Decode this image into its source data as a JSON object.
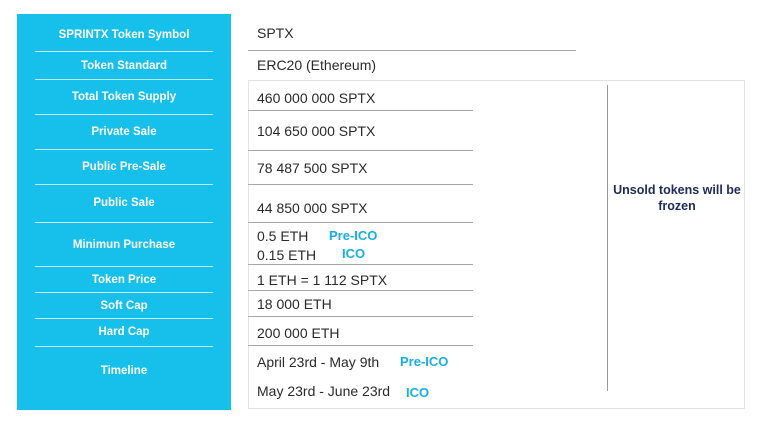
{
  "labels": [
    "SPRINTX Token Symbol",
    "Token Standard",
    "Total Token Supply",
    "Private Sale",
    "Public Pre-Sale",
    "Public Sale",
    "Minimun Purchase",
    "Token Price",
    "Soft Cap",
    "Hard Cap",
    "Timeline"
  ],
  "values": {
    "symbol": "SPTX",
    "standard": "ERC20 (Ethereum)",
    "total_supply": "460 000 000 SPTX",
    "private_sale": "104 650 000 SPTX",
    "public_presale": "78 487 500 SPTX",
    "public_sale": "44 850 000 SPTX",
    "min_purchase_preico": "0.5 ETH",
    "min_purchase_ico": "0.15 ETH",
    "token_price": "1 ETH = 1 112 SPTX",
    "soft_cap": "18 000 ETH",
    "hard_cap": "200 000 ETH",
    "timeline_preico": "April 23rd -  May 9th",
    "timeline_ico": "May 23rd - June 23rd"
  },
  "tags": {
    "pre_ico": "Pre-ICO",
    "ico": "ICO"
  },
  "note": "Unsold tokens will be frozen",
  "colors": {
    "label_bg": "#17c0ea",
    "tag": "#17aee6",
    "note": "#1f2a5a"
  }
}
